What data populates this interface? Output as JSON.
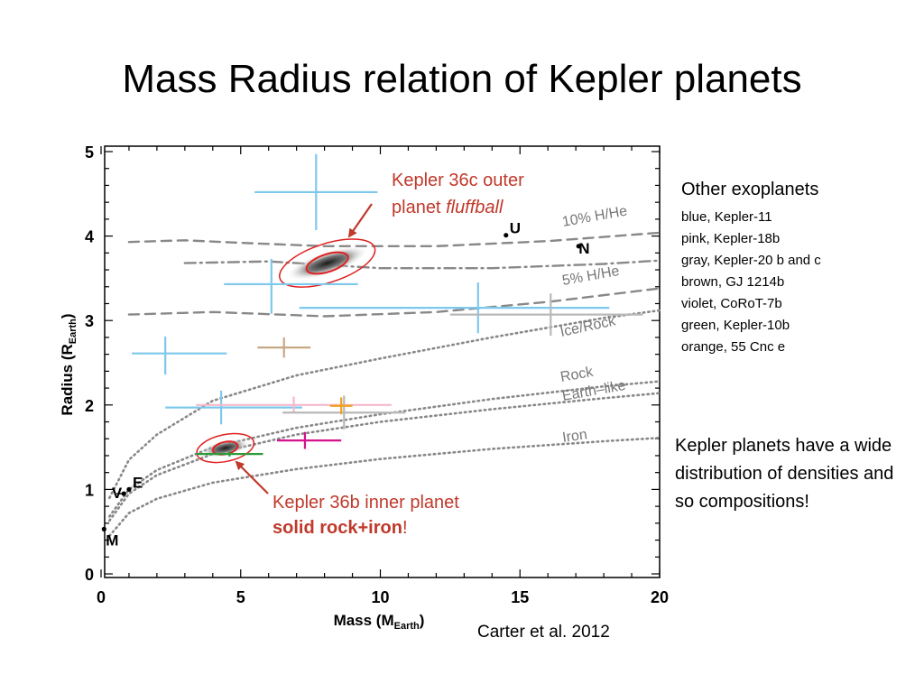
{
  "slide": {
    "title": "Mass Radius relation of Kepler planets",
    "legend_heading": "Other exoplanets",
    "legend_items": [
      "blue, Kepler-11",
      "pink, Kepler-18b",
      "gray, Kepler-20 b and c",
      "brown, GJ 1214b",
      "violet, CoRoT-7b",
      "green, Kepler-10b",
      "orange, 55 Cnc e"
    ],
    "note": "Kepler planets have a wide distribution of densities and so compositions!",
    "citation": "Carter et al. 2012"
  },
  "chart_data": {
    "type": "scatter",
    "xlabel": "Mass (M",
    "xlabel_sub": "Earth",
    "ylabel": "Radius (R",
    "ylabel_sub": "Earth",
    "xlim": [
      0,
      20
    ],
    "ylim": [
      0,
      5
    ],
    "xticks": [
      0,
      5,
      10,
      15,
      20
    ],
    "yticks": [
      0,
      1,
      2,
      3,
      4,
      5
    ],
    "grid": false,
    "colors": {
      "blue": "#7ec8ec",
      "pink": "#f5b8cc",
      "gray": "#b8b8b8",
      "brown": "#c8a882",
      "violet": "#d4148c",
      "green": "#2a9a3a",
      "orange": "#f0a020",
      "annotation": "#c0392b",
      "curve": "#888888"
    },
    "series": [
      {
        "name": "Kepler-11",
        "color": "blue",
        "points": [
          {
            "x": 7.7,
            "y": 4.52,
            "xerr": [
              2.2,
              2.2
            ],
            "yerr": [
              0.45,
              0.45
            ]
          },
          {
            "x": 6.1,
            "y": 3.43,
            "xerr": [
              1.7,
              3.1
            ],
            "yerr": [
              0.35,
              0.3
            ]
          },
          {
            "x": 13.5,
            "y": 3.15,
            "xerr": [
              6.4,
              4.7
            ],
            "yerr": [
              0.3,
              0.3
            ]
          },
          {
            "x": 2.3,
            "y": 2.61,
            "xerr": [
              1.2,
              2.2
            ],
            "yerr": [
              0.25,
              0.2
            ]
          },
          {
            "x": 4.3,
            "y": 1.97,
            "xerr": [
              2.0,
              2.9
            ],
            "yerr": [
              0.2,
              0.2
            ]
          }
        ]
      },
      {
        "name": "Kepler-18b",
        "color": "pink",
        "points": [
          {
            "x": 6.9,
            "y": 2.0,
            "xerr": [
              3.5,
              3.5
            ],
            "yerr": [
              0.1,
              0.1
            ]
          }
        ]
      },
      {
        "name": "Kepler-20 b and c",
        "color": "gray",
        "points": [
          {
            "x": 16.1,
            "y": 3.07,
            "xerr": [
              3.6,
              3.3
            ],
            "yerr": [
              0.25,
              0.25
            ]
          },
          {
            "x": 8.7,
            "y": 1.91,
            "xerr": [
              2.2,
              2.2
            ],
            "yerr": [
              0.2,
              0.2
            ]
          }
        ]
      },
      {
        "name": "GJ 1214b",
        "color": "brown",
        "points": [
          {
            "x": 6.55,
            "y": 2.68,
            "xerr": [
              0.95,
              0.95
            ],
            "yerr": [
              0.12,
              0.12
            ]
          }
        ]
      },
      {
        "name": "CoRoT-7b",
        "color": "violet",
        "points": [
          {
            "x": 7.3,
            "y": 1.58,
            "xerr": [
              1.0,
              1.3
            ],
            "yerr": [
              0.1,
              0.1
            ]
          }
        ]
      },
      {
        "name": "Kepler-10b",
        "color": "green",
        "points": [
          {
            "x": 4.6,
            "y": 1.42,
            "xerr": [
              1.2,
              1.2
            ],
            "yerr": [
              0.03,
              0.03
            ]
          }
        ]
      },
      {
        "name": "55 Cnc e",
        "color": "orange",
        "points": [
          {
            "x": 8.6,
            "y": 1.99,
            "xerr": [
              0.4,
              0.4
            ],
            "yerr": [
              0.1,
              0.1
            ]
          }
        ]
      }
    ],
    "solar_system": [
      {
        "label": "M",
        "x": 0.107,
        "y": 0.53
      },
      {
        "label": "V",
        "x": 0.815,
        "y": 0.95
      },
      {
        "label": "E",
        "x": 1.0,
        "y": 1.0
      },
      {
        "label": "U",
        "x": 14.5,
        "y": 4.01
      },
      {
        "label": "N",
        "x": 17.1,
        "y": 3.88
      }
    ],
    "kepler36": [
      {
        "x": 8.1,
        "y": 3.68
      },
      {
        "x": 4.45,
        "y": 1.49
      }
    ],
    "composition_curves": [
      {
        "name": "10% H/He",
        "style": "dashed",
        "points": [
          [
            1,
            3.93
          ],
          [
            3,
            3.95
          ],
          [
            5,
            3.92
          ],
          [
            8,
            3.88
          ],
          [
            12,
            3.88
          ],
          [
            16,
            3.94
          ],
          [
            20,
            4.04
          ]
        ]
      },
      {
        "name": "",
        "style": "dashdot",
        "points": [
          [
            3,
            3.68
          ],
          [
            6,
            3.7
          ],
          [
            10,
            3.62
          ],
          [
            14,
            3.62
          ],
          [
            18,
            3.67
          ],
          [
            20,
            3.71
          ]
        ]
      },
      {
        "name": "5% H/He",
        "style": "dashed",
        "points": [
          [
            1,
            3.07
          ],
          [
            4,
            3.1
          ],
          [
            8,
            3.05
          ],
          [
            12,
            3.1
          ],
          [
            16,
            3.22
          ],
          [
            20,
            3.38
          ]
        ]
      },
      {
        "name": "Ice/Rock",
        "style": "dotted",
        "points": [
          [
            0.3,
            0.9
          ],
          [
            1,
            1.35
          ],
          [
            2,
            1.65
          ],
          [
            4,
            2.05
          ],
          [
            7,
            2.35
          ],
          [
            10,
            2.55
          ],
          [
            14,
            2.8
          ],
          [
            18,
            3.03
          ],
          [
            20,
            3.12
          ]
        ]
      },
      {
        "name": "Rock",
        "style": "dotted",
        "points": [
          [
            0.3,
            0.68
          ],
          [
            1,
            1.0
          ],
          [
            2,
            1.23
          ],
          [
            4,
            1.5
          ],
          [
            7,
            1.73
          ],
          [
            10,
            1.89
          ],
          [
            14,
            2.07
          ],
          [
            18,
            2.22
          ],
          [
            20,
            2.28
          ]
        ]
      },
      {
        "name": "Earth–like",
        "style": "dotted",
        "points": [
          [
            0.3,
            0.63
          ],
          [
            1,
            0.95
          ],
          [
            2,
            1.17
          ],
          [
            4,
            1.42
          ],
          [
            7,
            1.65
          ],
          [
            10,
            1.8
          ],
          [
            14,
            1.95
          ],
          [
            18,
            2.08
          ],
          [
            20,
            2.14
          ]
        ]
      },
      {
        "name": "Iron",
        "style": "dotted",
        "points": [
          [
            0.3,
            0.45
          ],
          [
            1,
            0.72
          ],
          [
            2,
            0.89
          ],
          [
            4,
            1.08
          ],
          [
            7,
            1.24
          ],
          [
            10,
            1.36
          ],
          [
            14,
            1.48
          ],
          [
            18,
            1.57
          ],
          [
            20,
            1.61
          ]
        ]
      }
    ],
    "annotations": [
      {
        "line1": "Kepler 36c outer",
        "line2_prefix": "planet ",
        "line2_emph": "fluffball"
      },
      {
        "line1": "Kepler 36b inner planet",
        "line2": "solid rock+iron",
        "line2_suffix": "!"
      }
    ]
  }
}
